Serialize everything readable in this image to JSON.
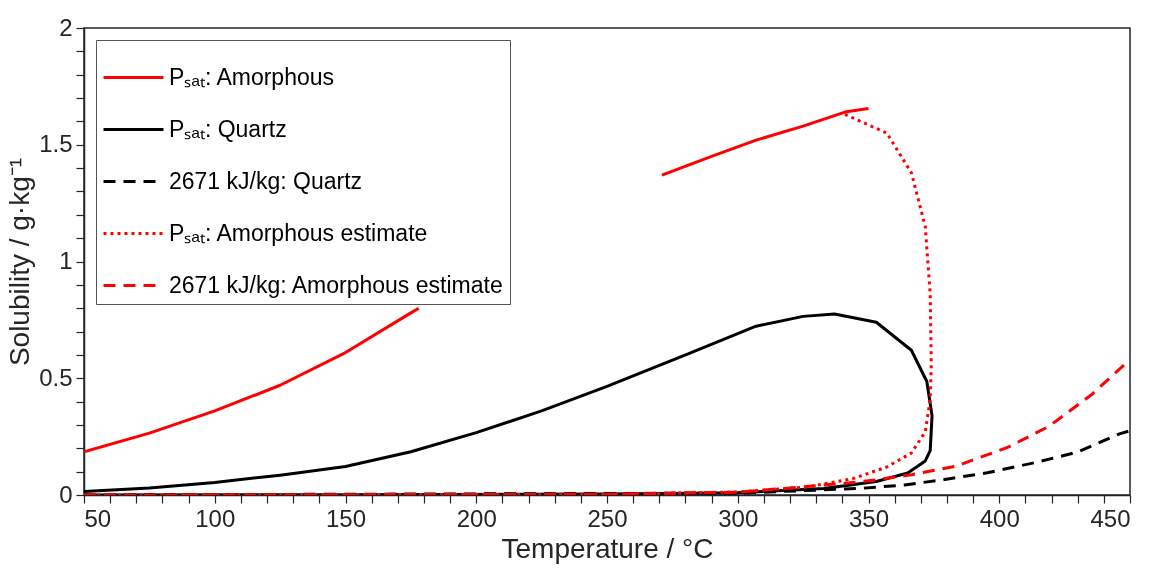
{
  "chart_data": {
    "type": "line",
    "xlabel": "Temperature / °C",
    "ylabel": "Solubility / g·kg⁻¹",
    "xlim": [
      50,
      450
    ],
    "ylim": [
      0,
      2
    ],
    "xticks": [
      50,
      {
        "value": 60,
        "label": null
      },
      {
        "value": 70,
        "label": null
      },
      {
        "value": 80,
        "label": null
      },
      {
        "value": 90,
        "label": null
      },
      100,
      {
        "value": 110,
        "label": null
      },
      {
        "value": 120,
        "label": null
      },
      {
        "value": 130,
        "label": null
      },
      {
        "value": 140,
        "label": null
      },
      150,
      {
        "value": 160,
        "label": null
      },
      {
        "value": 170,
        "label": null
      },
      {
        "value": 180,
        "label": null
      },
      {
        "value": 190,
        "label": null
      },
      200,
      {
        "value": 210,
        "label": null
      },
      {
        "value": 220,
        "label": null
      },
      {
        "value": 230,
        "label": null
      },
      {
        "value": 240,
        "label": null
      },
      250,
      {
        "value": 260,
        "label": null
      },
      {
        "value": 270,
        "label": null
      },
      {
        "value": 280,
        "label": null
      },
      {
        "value": 290,
        "label": null
      },
      300,
      {
        "value": 310,
        "label": null
      },
      {
        "value": 320,
        "label": null
      },
      {
        "value": 330,
        "label": null
      },
      {
        "value": 340,
        "label": null
      },
      350,
      {
        "value": 360,
        "label": null
      },
      {
        "value": 370,
        "label": null
      },
      {
        "value": 380,
        "label": null
      },
      {
        "value": 390,
        "label": null
      },
      400,
      {
        "value": 410,
        "label": null
      },
      {
        "value": 420,
        "label": null
      },
      {
        "value": 430,
        "label": null
      },
      {
        "value": 440,
        "label": null
      },
      450
    ],
    "yticks": [
      0,
      {
        "value": 0.1,
        "label": null
      },
      {
        "value": 0.2,
        "label": null
      },
      {
        "value": 0.3,
        "label": null
      },
      {
        "value": 0.4,
        "label": null
      },
      0.5,
      {
        "value": 0.6,
        "label": null
      },
      {
        "value": 0.7,
        "label": null
      },
      {
        "value": 0.8,
        "label": null
      },
      {
        "value": 0.9,
        "label": null
      },
      1,
      {
        "value": 1.1,
        "label": null
      },
      {
        "value": 1.2,
        "label": null
      },
      {
        "value": 1.3,
        "label": null
      },
      {
        "value": 1.4,
        "label": null
      },
      1.5,
      {
        "value": 1.6,
        "label": null
      },
      {
        "value": 1.7,
        "label": null
      },
      {
        "value": 1.8,
        "label": null
      },
      {
        "value": 1.9,
        "label": null
      },
      2
    ],
    "grid": false,
    "legend": "top left",
    "series": [
      {
        "name": "Pₛₐₜ: Amorphous",
        "color": "#ff0000",
        "line_style": "solid",
        "x": [
          50,
          75,
          100,
          125,
          150,
          175,
          178,
          225,
          271,
          290,
          307,
          325,
          341,
          350
        ],
        "values": [
          0.185,
          0.265,
          0.36,
          0.47,
          0.61,
          0.78,
          0.8,
          null,
          1.37,
          1.45,
          1.52,
          1.58,
          1.64,
          1.655
        ]
      },
      {
        "name": "Pₛₐₜ: Quartz",
        "color": "#000000",
        "line_style": "solid",
        "x": [
          50,
          75,
          100,
          125,
          150,
          175,
          200,
          225,
          250,
          281,
          307,
          325,
          337,
          353,
          366.4,
          372.3,
          374.3,
          373.6,
          371.7,
          365,
          353,
          333,
          300,
          250,
          150,
          50
        ],
        "values": [
          0.015,
          0.03,
          0.054,
          0.085,
          0.122,
          0.185,
          0.267,
          0.36,
          0.465,
          0.604,
          0.723,
          0.765,
          0.775,
          0.74,
          0.62,
          0.486,
          0.34,
          0.19,
          0.146,
          0.094,
          0.058,
          0.028,
          0.01,
          0.004,
          0.001,
          0
        ]
      },
      {
        "name": "2671 kJ/kg: Quartz",
        "color": "#000000",
        "line_style": "dashed",
        "x": [
          50,
          300,
          346.6,
          363.8,
          378.3,
          395.4,
          413.8,
          429.7,
          446,
          450
        ],
        "values": [
          0,
          0.008,
          0.028,
          0.043,
          0.065,
          0.095,
          0.139,
          0.183,
          0.262,
          0.275
        ]
      },
      {
        "name": "Pₛₐₜ: Amorphous estimate",
        "color": "#ff0000",
        "line_style": "dotted",
        "x": [
          341,
          357,
          366.4,
          371.7,
          373.6,
          374,
          373.6,
          371.7,
          366.4,
          357,
          344,
          327,
          300,
          250,
          50
        ],
        "values": [
          1.63,
          1.55,
          1.38,
          1.15,
          0.86,
          0.56,
          0.41,
          0.27,
          0.18,
          0.12,
          0.07,
          0.035,
          0.013,
          0.003,
          0
        ]
      },
      {
        "name": "2671 kJ/kg: Amorphous estimate",
        "color": "#ff0000",
        "line_style": "dashed",
        "x": [
          50,
          250,
          300,
          341,
          353,
          366.4,
          383.6,
          403.4,
          419,
          435,
          450
        ],
        "values": [
          0,
          0.003,
          0.012,
          0.05,
          0.065,
          0.087,
          0.124,
          0.205,
          0.294,
          0.427,
          0.58
        ]
      }
    ]
  }
}
